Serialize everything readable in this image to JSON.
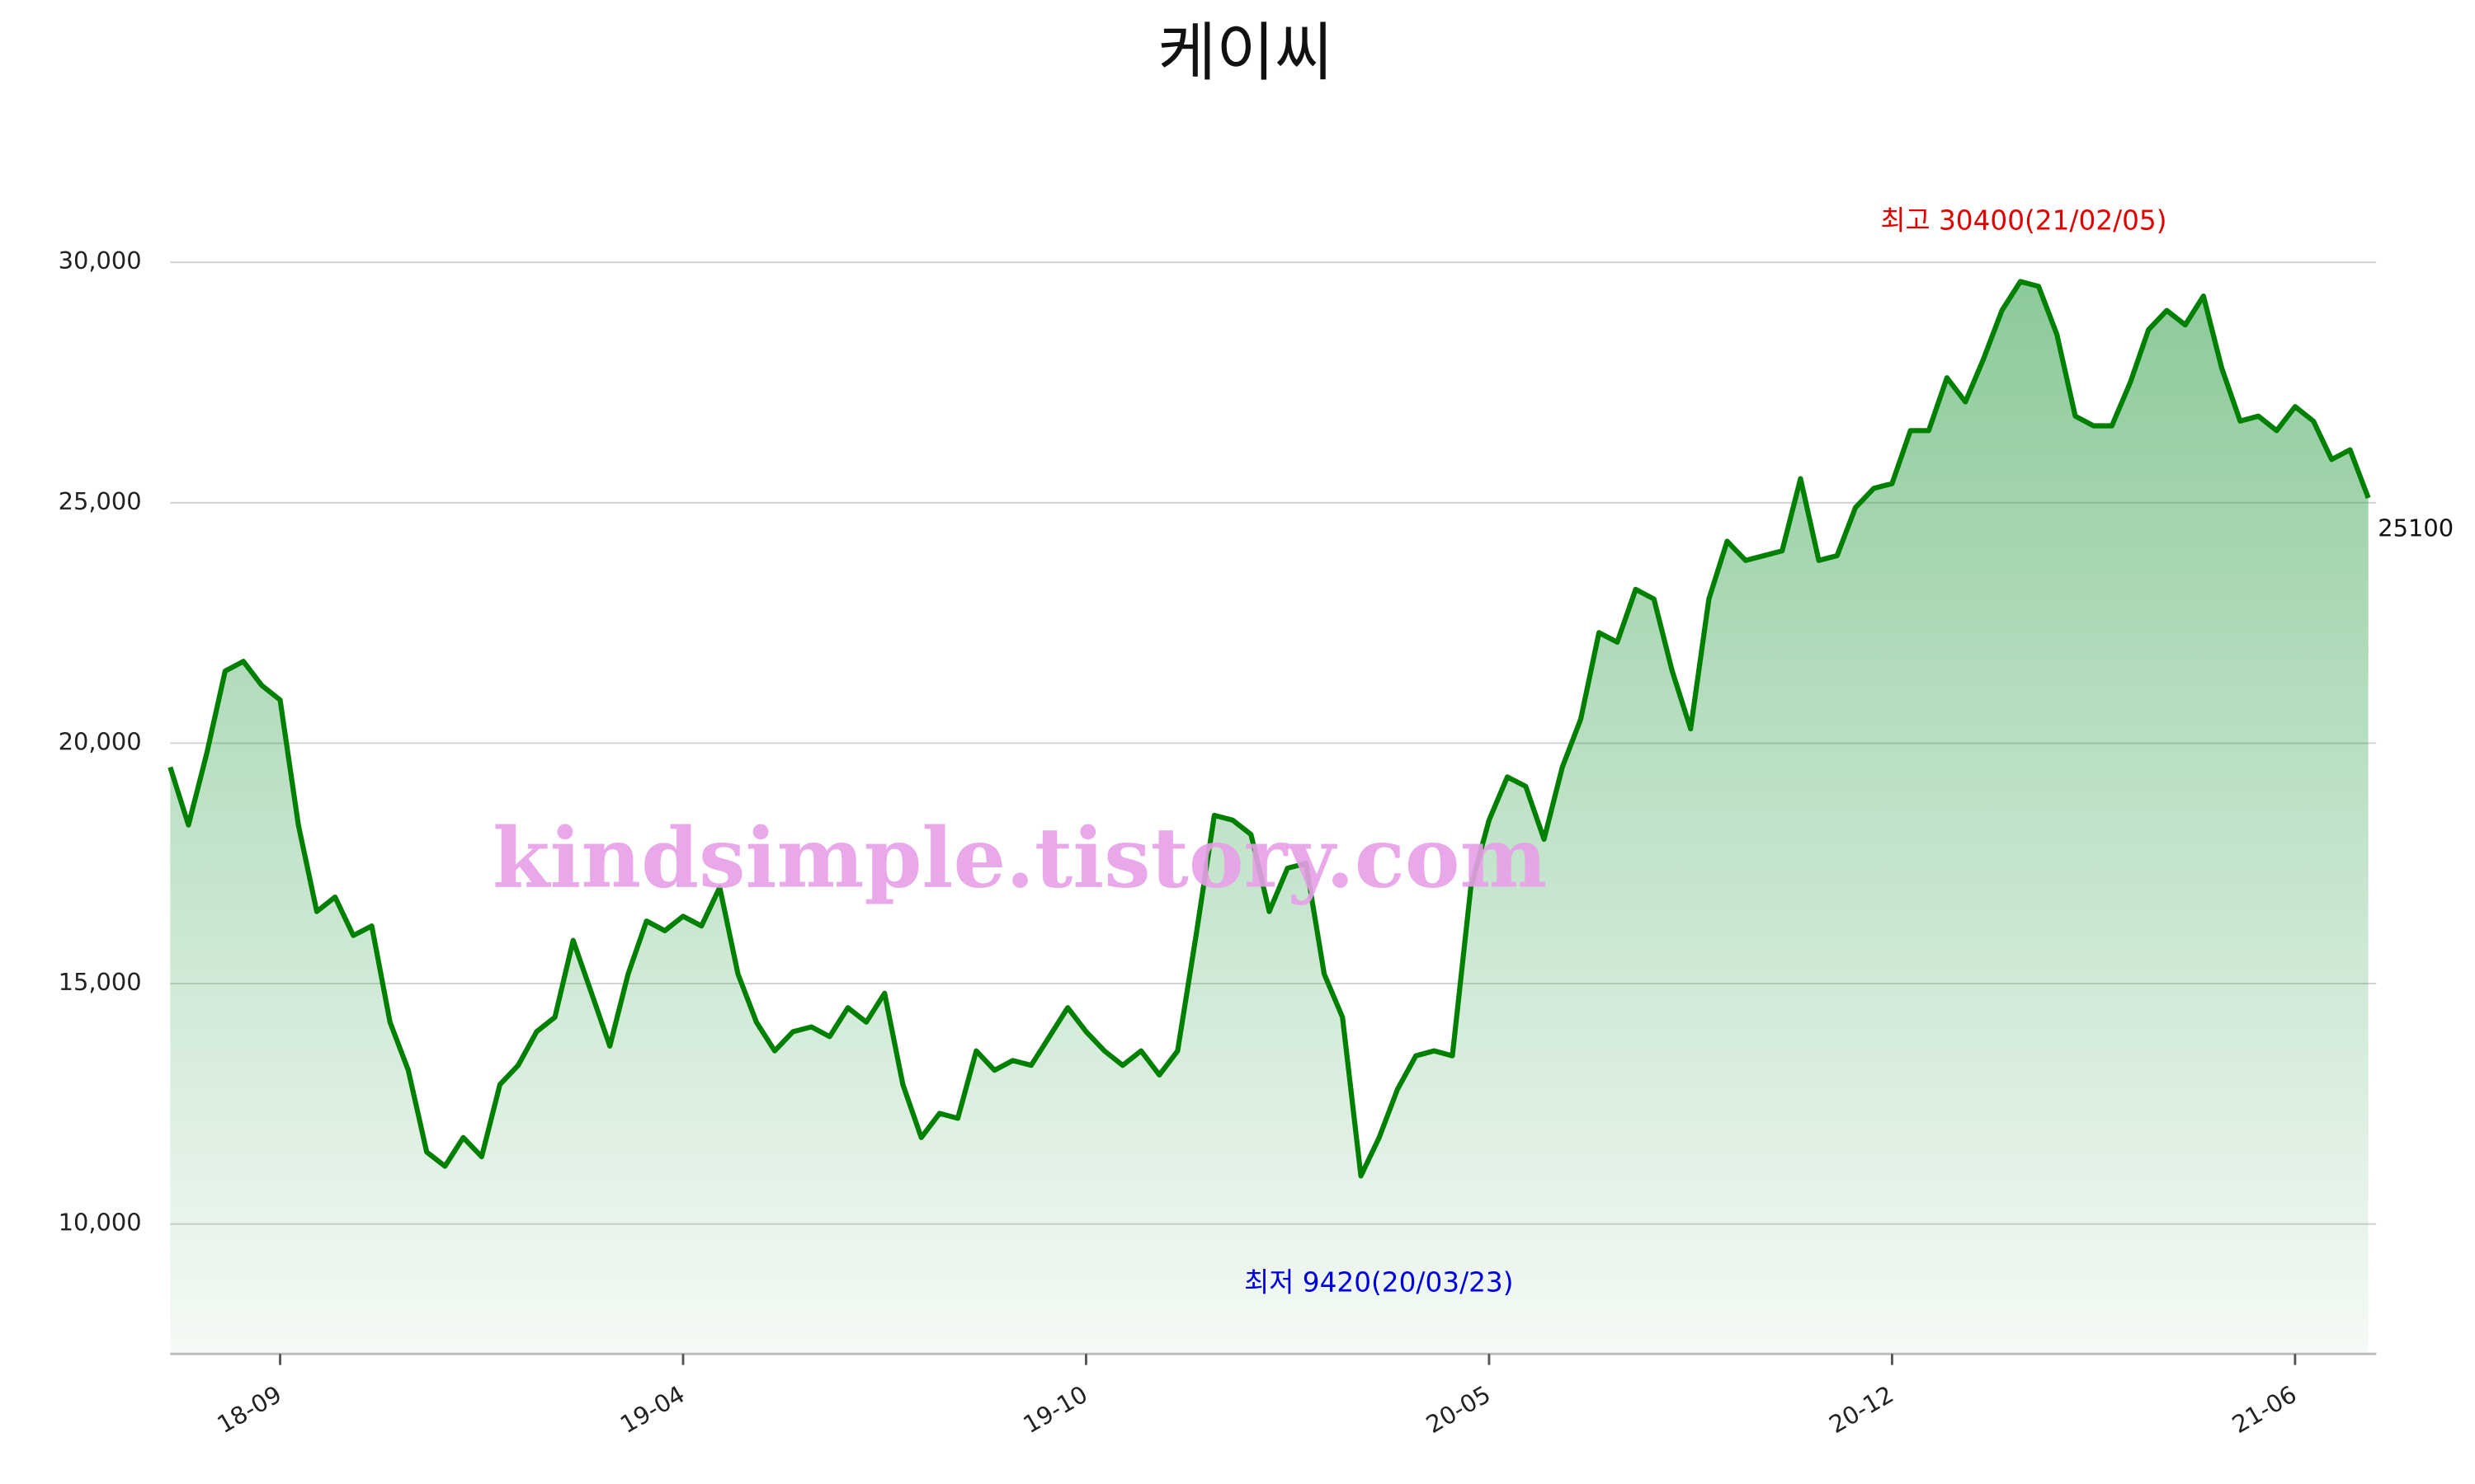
{
  "chart_data": {
    "type": "line",
    "title": "케이씨",
    "watermark": "kindsimple.tistory.com",
    "categories": [
      null,
      null,
      null,
      null,
      null,
      null,
      "18-09",
      null,
      null,
      null,
      null,
      null,
      null,
      null,
      null,
      null,
      null,
      null,
      null,
      null,
      null,
      null,
      null,
      null,
      null,
      null,
      null,
      null,
      "19-04",
      null,
      null,
      null,
      null,
      null,
      null,
      null,
      null,
      null,
      null,
      null,
      null,
      null,
      null,
      null,
      null,
      null,
      null,
      null,
      null,
      null,
      "19-10",
      null,
      null,
      null,
      null,
      null,
      null,
      null,
      null,
      null,
      null,
      null,
      null,
      null,
      null,
      null,
      null,
      null,
      null,
      null,
      null,
      null,
      "20-05",
      null,
      null,
      null,
      null,
      null,
      null,
      null,
      null,
      null,
      null,
      null,
      null,
      null,
      null,
      null,
      null,
      null,
      null,
      null,
      null,
      null,
      "20-12",
      null,
      null,
      null,
      null,
      null,
      null,
      null,
      null,
      null,
      null,
      null,
      null,
      null,
      null,
      null,
      null,
      null,
      null,
      null,
      null,
      null,
      "21-06",
      null,
      null,
      null,
      null
    ],
    "series": [
      {
        "color": "#008000",
        "fill_color": "#2e9e48",
        "values": [
          19500,
          18300,
          19800,
          21500,
          21700,
          21200,
          20900,
          18300,
          16500,
          16800,
          16000,
          16200,
          14200,
          13200,
          11500,
          11200,
          11800,
          11400,
          12900,
          13300,
          14000,
          14300,
          15900,
          14800,
          13700,
          15200,
          16300,
          16100,
          16400,
          16200,
          17000,
          15200,
          14200,
          13600,
          14000,
          14100,
          13900,
          14500,
          14200,
          14800,
          12900,
          11800,
          12300,
          12200,
          13600,
          13200,
          13400,
          13300,
          13900,
          14500,
          14000,
          13600,
          13300,
          13600,
          13100,
          13600,
          16000,
          18500,
          18400,
          18100,
          16500,
          17400,
          17500,
          15200,
          14300,
          11000,
          11800,
          12800,
          13500,
          13600,
          13500,
          17000,
          18400,
          19300,
          19100,
          18000,
          19500,
          20500,
          22300,
          22100,
          23200,
          23000,
          21500,
          20300,
          23000,
          24200,
          23800,
          23900,
          24000,
          25500,
          23800,
          23900,
          24900,
          25300,
          25400,
          26500,
          26500,
          27600,
          27100,
          28000,
          29000,
          29600,
          29500,
          28500,
          26800,
          26600,
          26600,
          27500,
          28600,
          29000,
          28700,
          29300,
          27800,
          26700,
          26800,
          26500,
          27000,
          26700,
          25900,
          26100,
          25100
        ]
      }
    ],
    "annotations": [
      {
        "text": "최고 30400(21/02/05)",
        "color": "#e00000"
      },
      {
        "text": "최저 9420(20/03/23)",
        "color": "#0000dd"
      }
    ],
    "ylim": [
      7300,
      31000
    ],
    "yticks": [
      {
        "value": 10000,
        "label": "10,000"
      },
      {
        "value": 15000,
        "label": "15,000"
      },
      {
        "value": 20000,
        "label": "20,000"
      },
      {
        "value": 25000,
        "label": "25,000"
      },
      {
        "value": 30000,
        "label": "30,000"
      }
    ],
    "grid": true
  }
}
